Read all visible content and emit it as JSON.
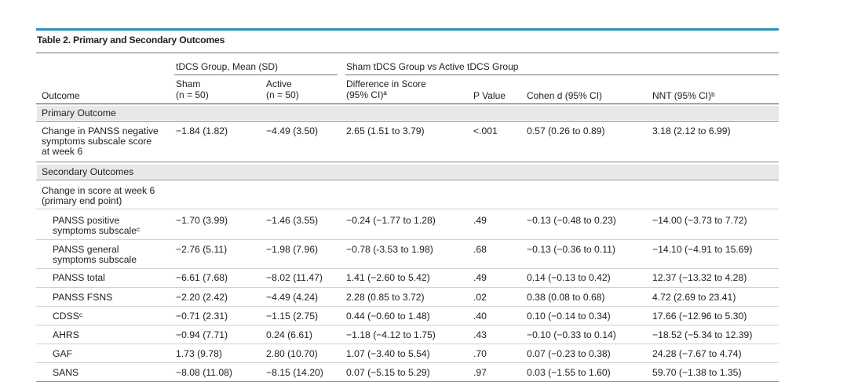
{
  "table": {
    "title": "Table 2. Primary and Secondary Outcomes",
    "group_headers": {
      "tdcs_group": "tDCS Group, Mean (SD)",
      "comparison": "Sham tDCS Group vs Active tDCS Group"
    },
    "columns": {
      "outcome": "Outcome",
      "sham_line1": "Sham",
      "sham_line2": "(n = 50)",
      "active_line1": "Active",
      "active_line2": "(n = 50)",
      "diff_line1": "Difference in Score",
      "diff_line2": "(95% CI)ª",
      "p_value": "P Value",
      "cohen": "Cohen d (95% CI)",
      "nnt": "NNT (95% CI)ᵇ"
    },
    "sections": {
      "primary": "Primary Outcome",
      "secondary": "Secondary Outcomes"
    },
    "primary_row": {
      "outcome_lines": [
        "Change in PANSS negative",
        "symptoms subscale score",
        "at week 6"
      ],
      "sham": "−1.84 (1.82)",
      "active": "−4.49 (3.50)",
      "diff": "2.65 (1.51 to 3.79)",
      "p": "<.001",
      "cohen": "0.57 (0.26 to 0.89)",
      "nnt": "3.18 (2.12 to 6.99)"
    },
    "secondary_intro": [
      "Change in score at week 6",
      "(primary end point)"
    ],
    "rows": [
      {
        "outcome_lines": [
          "PANSS positive",
          "symptoms subscaleᶜ"
        ],
        "sham": "−1.70 (3.99)",
        "active": "−1.46 (3.55)",
        "diff": "−0.24 (−1.77 to 1.28)",
        "p": ".49",
        "cohen": "−0.13 (−0.48 to 0.23)",
        "nnt": "−14.00 (−3.73 to 7.72)"
      },
      {
        "outcome_lines": [
          "PANSS general",
          "symptoms subscale"
        ],
        "sham": "−2.76 (5.11)",
        "active": "−1.98 (7.96)",
        "diff": "−0.78 (-3.53 to 1.98)",
        "p": ".68",
        "cohen": "−0.13 (−0.36 to 0.11)",
        "nnt": "−14.10 (−4.91 to 15.69)"
      },
      {
        "outcome_lines": [
          "PANSS total"
        ],
        "sham": "−6.61 (7.68)",
        "active": "−8.02 (11.47)",
        "diff": "1.41 (−2.60 to 5.42)",
        "p": ".49",
        "cohen": "0.14 (−0.13 to 0.42)",
        "nnt": "12.37 (−13.32 to 4.28)"
      },
      {
        "outcome_lines": [
          "PANSS FSNS"
        ],
        "sham": "−2.20 (2.42)",
        "active": "−4.49 (4.24)",
        "diff": "2.28 (0.85 to 3.72)",
        "p": ".02",
        "cohen": "0.38 (0.08 to 0.68)",
        "nnt": "4.72 (2.69 to 23.41)"
      },
      {
        "outcome_lines": [
          "CDSSᶜ"
        ],
        "sham": "−0.71 (2.31)",
        "active": "−1.15 (2.75)",
        "diff": "0.44 (−0.60 to 1.48)",
        "p": ".40",
        "cohen": "0.10 (−0.14 to 0.34)",
        "nnt": "17.66 (−12.96 to 5.30)"
      },
      {
        "outcome_lines": [
          "AHRS"
        ],
        "sham": "−0.94 (7.71)",
        "active": "0.24 (6.61)",
        "diff": "−1.18 (−4.12 to 1.75)",
        "p": ".43",
        "cohen": "−0.10 (−0.33 to 0.14)",
        "nnt": "−18.52 (−5.34 to 12.39)"
      },
      {
        "outcome_lines": [
          "GAF"
        ],
        "sham": "1.73 (9.78)",
        "active": "2.80 (10.70)",
        "diff": "1.07 (−3.40 to 5.54)",
        "p": ".70",
        "cohen": "0.07 (−0.23 to 0.38)",
        "nnt": "24.28 (−7.67 to 4.74)"
      },
      {
        "outcome_lines": [
          "SANS"
        ],
        "sham": "−8.08 (11.08)",
        "active": "−8.15 (14.20)",
        "diff": "0.07 (−5.15 to 5.29)",
        "p": ".97",
        "cohen": "0.03 (−1.55 to 1.60)",
        "nnt": "59.70 (−1.38 to 1.35)"
      }
    ]
  }
}
